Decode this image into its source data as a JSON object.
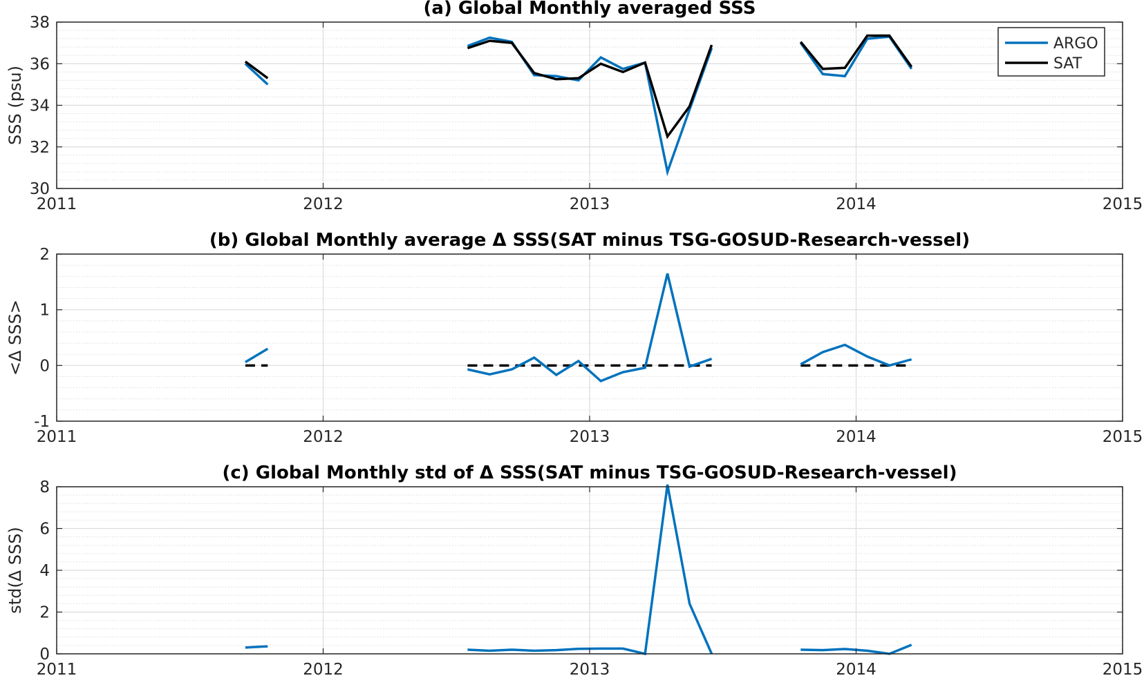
{
  "colors": {
    "argo": "#0072BD",
    "sat": "#000000",
    "zero_line": "#000000"
  },
  "chart_data": [
    {
      "type": "line",
      "title": "(a) Global Monthly averaged SSS",
      "ylabel": "SSS (psu)",
      "xlabel": "",
      "xlim": [
        2011,
        2015
      ],
      "ylim": [
        30,
        38
      ],
      "xticks": [
        2011,
        2012,
        2013,
        2014,
        2015
      ],
      "xtick_labels": [
        "2011",
        "2012",
        "2013",
        "2014",
        "2015"
      ],
      "yticks": [
        30,
        32,
        34,
        36,
        38
      ],
      "ytick_labels": [
        "30",
        "32",
        "34",
        "36",
        "38"
      ],
      "grid": true,
      "minor_grid_step": 0.4,
      "legend": {
        "placement": "top-right",
        "entries": [
          "ARGO",
          "SAT"
        ]
      },
      "series": [
        {
          "name": "ARGO",
          "color": "#0072BD",
          "segments": [
            [
              [
                2011.708,
                36.0
              ],
              [
                2011.792,
                35.0
              ]
            ],
            [
              [
                2012.542,
                36.85
              ],
              [
                2012.625,
                37.25
              ],
              [
                2012.708,
                37.05
              ],
              [
                2012.792,
                35.45
              ],
              [
                2012.875,
                35.4
              ],
              [
                2012.958,
                35.2
              ],
              [
                2013.042,
                36.3
              ],
              [
                2013.125,
                35.75
              ],
              [
                2013.208,
                36.05
              ],
              [
                2013.292,
                30.8
              ],
              [
                2013.375,
                33.8
              ],
              [
                2013.458,
                36.75
              ]
            ],
            [
              [
                2013.792,
                37.0
              ],
              [
                2013.875,
                35.5
              ],
              [
                2013.958,
                35.4
              ],
              [
                2014.042,
                37.2
              ],
              [
                2014.125,
                37.3
              ],
              [
                2014.208,
                35.75
              ]
            ]
          ]
        },
        {
          "name": "SAT",
          "color": "#000000",
          "segments": [
            [
              [
                2011.708,
                36.1
              ],
              [
                2011.792,
                35.3
              ]
            ],
            [
              [
                2012.542,
                36.75
              ],
              [
                2012.625,
                37.1
              ],
              [
                2012.708,
                37.0
              ],
              [
                2012.792,
                35.55
              ],
              [
                2012.875,
                35.25
              ],
              [
                2012.958,
                35.3
              ],
              [
                2013.042,
                36.0
              ],
              [
                2013.125,
                35.6
              ],
              [
                2013.208,
                36.05
              ],
              [
                2013.292,
                32.5
              ],
              [
                2013.375,
                33.95
              ],
              [
                2013.458,
                36.9
              ]
            ],
            [
              [
                2013.792,
                37.05
              ],
              [
                2013.875,
                35.75
              ],
              [
                2013.958,
                35.8
              ],
              [
                2014.042,
                37.35
              ],
              [
                2014.125,
                37.35
              ],
              [
                2014.208,
                35.85
              ]
            ]
          ]
        }
      ]
    },
    {
      "type": "line",
      "title": "(b) Global Monthly average Δ SSS(SAT minus TSG-GOSUD-Research-vessel)",
      "ylabel": "<Δ SSS>",
      "xlabel": "",
      "xlim": [
        2011,
        2015
      ],
      "ylim": [
        -1,
        2
      ],
      "xticks": [
        2011,
        2012,
        2013,
        2014,
        2015
      ],
      "xtick_labels": [
        "2011",
        "2012",
        "2013",
        "2014",
        "2015"
      ],
      "yticks": [
        -1,
        0,
        1,
        2
      ],
      "ytick_labels": [
        "-1",
        "0",
        "1",
        "2"
      ],
      "grid": true,
      "minor_grid_step": 0.2,
      "series": [
        {
          "color": "#0072BD",
          "segments": [
            [
              [
                2011.708,
                0.06
              ],
              [
                2011.792,
                0.3
              ]
            ],
            [
              [
                2012.542,
                -0.07
              ],
              [
                2012.625,
                -0.16
              ],
              [
                2012.708,
                -0.07
              ],
              [
                2012.792,
                0.14
              ],
              [
                2012.875,
                -0.17
              ],
              [
                2012.958,
                0.08
              ],
              [
                2013.042,
                -0.28
              ],
              [
                2013.125,
                -0.12
              ],
              [
                2013.208,
                -0.04
              ],
              [
                2013.292,
                1.65
              ],
              [
                2013.375,
                -0.02
              ],
              [
                2013.458,
                0.12
              ]
            ],
            [
              [
                2013.792,
                0.02
              ],
              [
                2013.875,
                0.24
              ],
              [
                2013.958,
                0.37
              ],
              [
                2014.042,
                0.16
              ],
              [
                2014.125,
                0.0
              ],
              [
                2014.208,
                0.11
              ]
            ]
          ]
        }
      ],
      "reference_lines": [
        {
          "y": 0,
          "style": "dashed",
          "color": "#000000",
          "segments": [
            [
              2011.708,
              2011.792
            ],
            [
              2012.542,
              2013.458
            ],
            [
              2013.792,
              2014.208
            ]
          ]
        }
      ]
    },
    {
      "type": "line",
      "title": "(c) Global Monthly std of Δ SSS(SAT minus TSG-GOSUD-Research-vessel)",
      "ylabel": "std(Δ SSS)",
      "xlabel": "",
      "xlim": [
        2011,
        2015
      ],
      "ylim": [
        0,
        8
      ],
      "xticks": [
        2011,
        2012,
        2013,
        2014,
        2015
      ],
      "xtick_labels": [
        "2011",
        "2012",
        "2013",
        "2014",
        "2015"
      ],
      "yticks": [
        0,
        2,
        4,
        6,
        8
      ],
      "ytick_labels": [
        "0",
        "2",
        "4",
        "6",
        "8"
      ],
      "grid": true,
      "minor_grid_step": 0.4,
      "series": [
        {
          "color": "#0072BD",
          "segments": [
            [
              [
                2011.708,
                0.3
              ],
              [
                2011.792,
                0.36
              ]
            ],
            [
              [
                2012.542,
                0.2
              ],
              [
                2012.625,
                0.15
              ],
              [
                2012.708,
                0.2
              ],
              [
                2012.792,
                0.15
              ],
              [
                2012.875,
                0.18
              ],
              [
                2012.958,
                0.24
              ],
              [
                2013.042,
                0.25
              ],
              [
                2013.125,
                0.25
              ],
              [
                2013.208,
                0.0
              ],
              [
                2013.292,
                8.1
              ],
              [
                2013.375,
                2.4
              ],
              [
                2013.458,
                0.0
              ]
            ],
            [
              [
                2013.792,
                0.2
              ],
              [
                2013.875,
                0.18
              ],
              [
                2013.958,
                0.23
              ],
              [
                2014.042,
                0.15
              ],
              [
                2014.125,
                0.0
              ],
              [
                2014.208,
                0.43
              ]
            ]
          ]
        }
      ]
    }
  ]
}
